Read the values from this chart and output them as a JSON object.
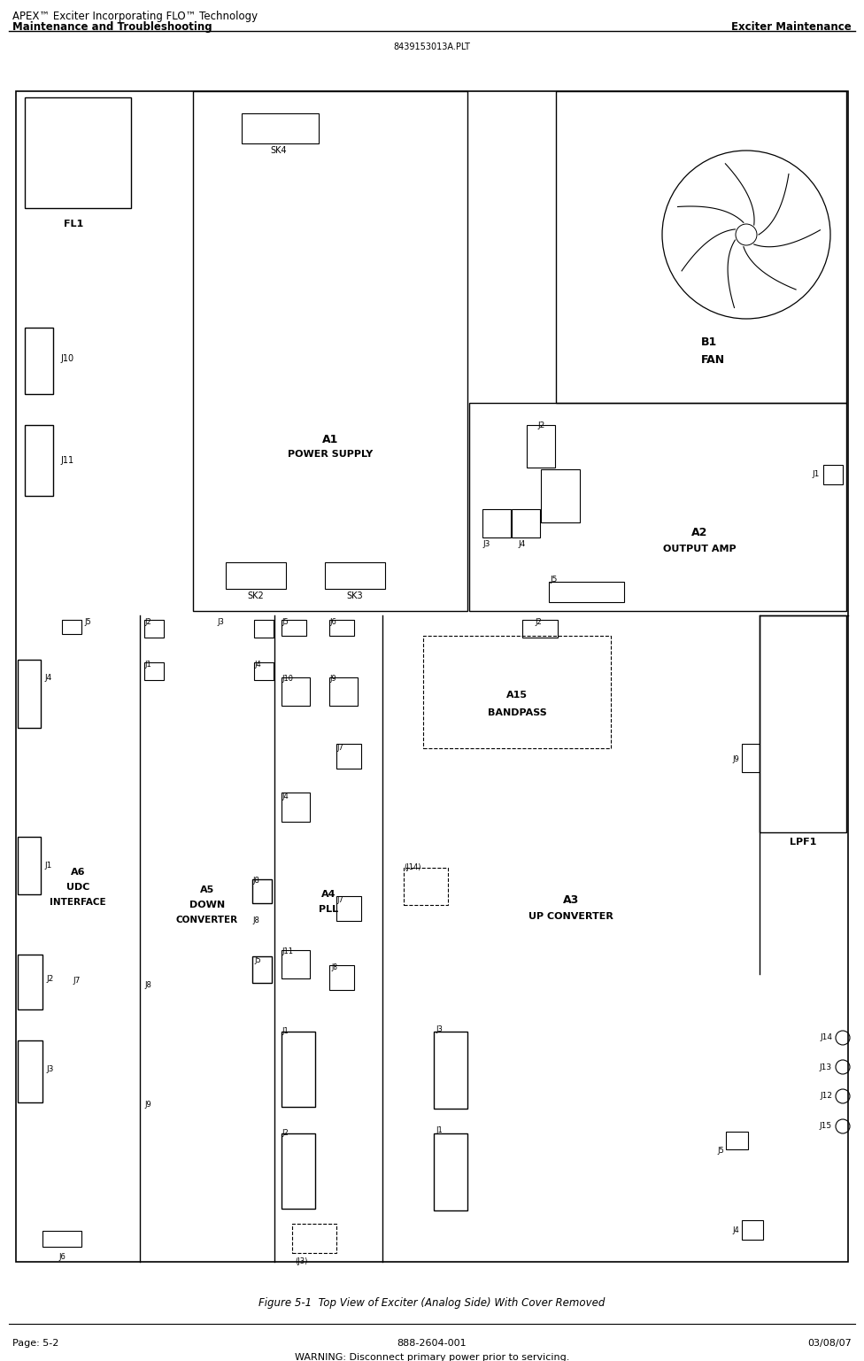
{
  "title_line1": "APEX™ Exciter Incorporating FLO™ Technology",
  "title_line2": "Maintenance and Troubleshooting",
  "title_right": "Exciter Maintenance",
  "filename": "8439153013A.PLT",
  "figure_caption": "Figure 5-1  Top View of Exciter (Analog Side) With Cover Removed",
  "footer_left": "Page: 5-2",
  "footer_center": "888-2604-001",
  "footer_right": "03/08/07",
  "footer_warning": "WARNING: Disconnect primary power prior to servicing.",
  "bg_color": "#ffffff",
  "line_color": "#000000"
}
